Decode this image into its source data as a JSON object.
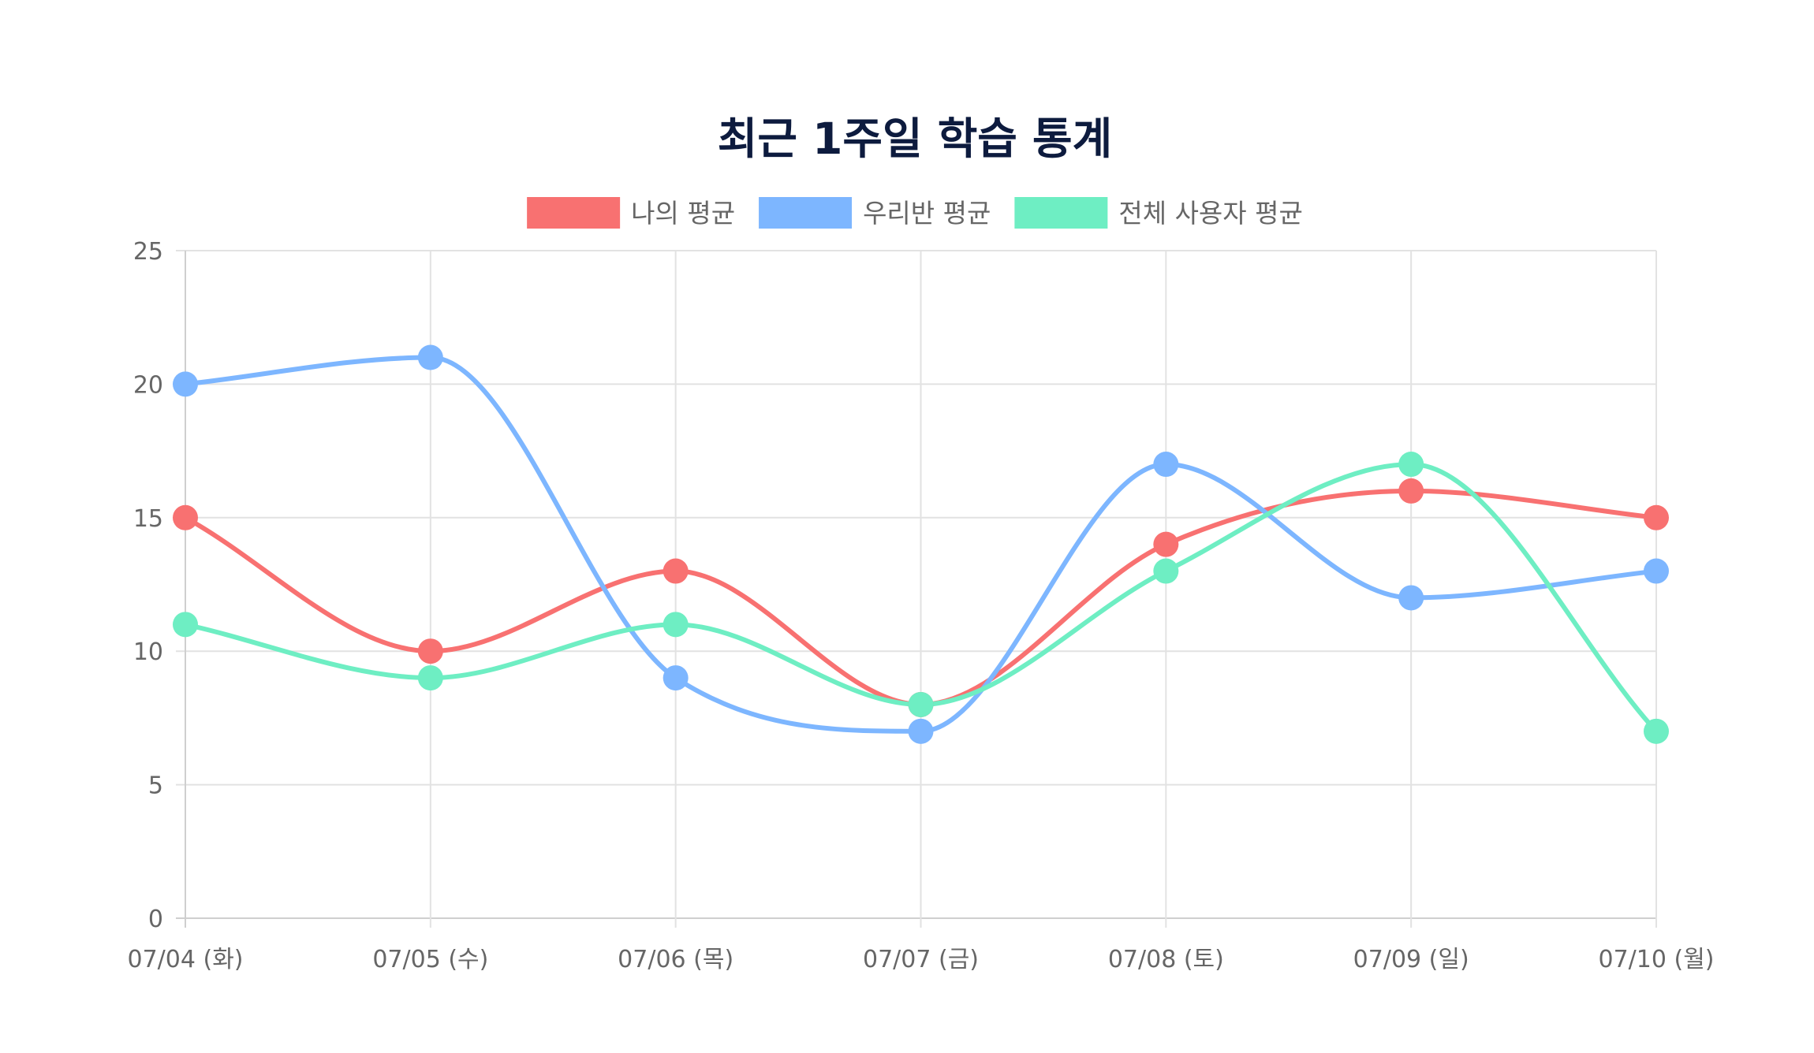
{
  "chart_data": {
    "type": "line",
    "title": "최근 1주일 학습 통계",
    "categories": [
      "07/04 (화)",
      "07/05 (수)",
      "07/06 (목)",
      "07/07 (금)",
      "07/08 (토)",
      "07/09 (일)",
      "07/10 (월)"
    ],
    "series": [
      {
        "name": "나의 평균",
        "color": "#f87171",
        "values": [
          15,
          10,
          13,
          8,
          14,
          16,
          15
        ]
      },
      {
        "name": "우리반 평균",
        "color": "#7db6ff",
        "values": [
          20,
          21,
          9,
          7,
          17,
          12,
          13
        ]
      },
      {
        "name": "전체 사용자 평균",
        "color": "#6eeec3",
        "values": [
          11,
          9,
          11,
          8,
          13,
          17,
          7
        ]
      }
    ],
    "ylim": [
      0,
      25
    ],
    "yticks": [
      0,
      5,
      10,
      15,
      20,
      25
    ],
    "xlabel": "",
    "ylabel": "",
    "grid": true,
    "legend_position": "top-center",
    "curve": "smooth"
  }
}
